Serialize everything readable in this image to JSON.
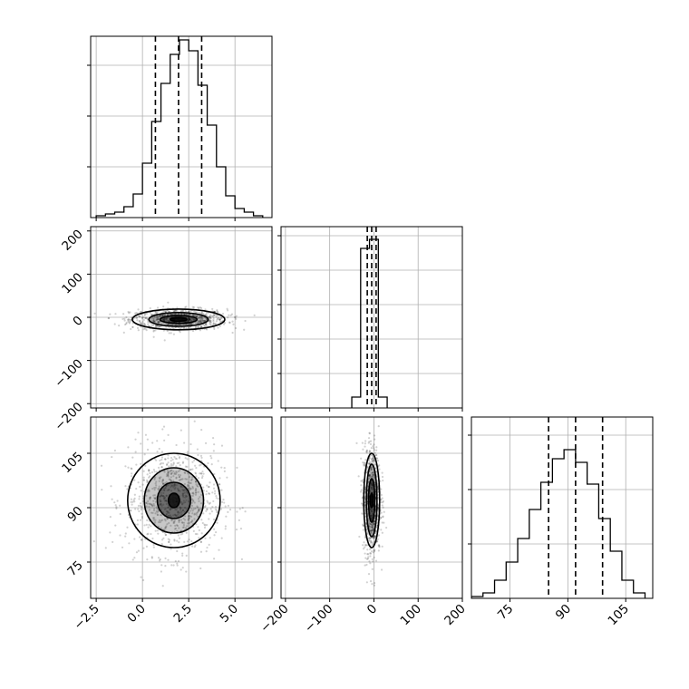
{
  "colors": {
    "line": "#000000",
    "grid": "#b0b0b0",
    "frame": "#000000",
    "scatter": "#000000"
  },
  "chart_data": [
    {
      "type": "histogram",
      "panel": "hist-1",
      "grid": true,
      "xlim": [
        -2.8,
        7.0
      ],
      "ylim": [
        0,
        1.0
      ],
      "bin_edges": [
        -2.5,
        -2.0,
        -1.5,
        -1.0,
        -0.5,
        0.0,
        0.5,
        1.0,
        1.5,
        2.0,
        2.5,
        3.0,
        3.5,
        4.0,
        4.5,
        5.0,
        5.5,
        6.0,
        6.5
      ],
      "values": [
        0.01,
        0.02,
        0.03,
        0.06,
        0.13,
        0.3,
        0.53,
        0.74,
        0.9,
        0.98,
        0.92,
        0.73,
        0.51,
        0.28,
        0.12,
        0.05,
        0.03,
        0.01
      ],
      "quantiles": [
        0.7,
        1.95,
        3.2
      ]
    },
    {
      "type": "histogram",
      "panel": "hist-2",
      "grid": true,
      "xlim": [
        -210,
        200
      ],
      "ylim": [
        0,
        1.0
      ],
      "bin_edges": [
        -50,
        -30,
        -10,
        10,
        30
      ],
      "values": [
        0.06,
        0.88,
        0.93,
        0.06
      ],
      "quantiles": [
        -15,
        -5,
        5
      ]
    },
    {
      "type": "histogram",
      "panel": "hist-3",
      "grid": true,
      "xlim": [
        65,
        112
      ],
      "ylim": [
        0,
        1.0
      ],
      "bin_edges": [
        65,
        68,
        71,
        74,
        77,
        80,
        83,
        86,
        89,
        92,
        95,
        98,
        101,
        104,
        107,
        110
      ],
      "values": [
        0.01,
        0.03,
        0.1,
        0.2,
        0.33,
        0.49,
        0.64,
        0.77,
        0.82,
        0.75,
        0.63,
        0.44,
        0.26,
        0.1,
        0.03
      ],
      "quantiles": [
        85,
        92,
        99
      ]
    },
    {
      "type": "scatter",
      "panel": "scatter-1",
      "grid": true,
      "xlim": [
        -2.8,
        7.0
      ],
      "ylim": [
        -210,
        210
      ],
      "ylabel_ticks": [
        "200",
        "100",
        "0",
        "−100",
        "−200"
      ],
      "center": [
        1.95,
        -5
      ],
      "spread": [
        1.3,
        12
      ],
      "contour_half_widths": [
        [
          0.45,
          4
        ],
        [
          1.0,
          9
        ],
        [
          1.6,
          16
        ],
        [
          2.5,
          24
        ]
      ]
    },
    {
      "type": "scatter",
      "panel": "scatter-2",
      "grid": true,
      "xlim": [
        -2.8,
        7.0
      ],
      "ylim": [
        65,
        115
      ],
      "ylabel_ticks": [
        "105",
        "90",
        "75"
      ],
      "xlabel_ticks": [
        "−2.5",
        "0.0",
        "2.5",
        "5.0"
      ],
      "center": [
        1.7,
        92
      ],
      "spread": [
        1.3,
        7.5
      ],
      "contour_half_widths": [
        [
          0.3,
          2
        ],
        [
          0.9,
          5
        ],
        [
          1.6,
          9
        ],
        [
          2.5,
          13
        ]
      ]
    },
    {
      "type": "scatter",
      "panel": "scatter-3",
      "grid": true,
      "xlim": [
        -210,
        200
      ],
      "ylim": [
        65,
        115
      ],
      "xlabel_ticks": [
        "−200",
        "−100",
        "0",
        "100",
        "200"
      ],
      "center": [
        -5,
        92
      ],
      "spread": [
        10,
        7.5
      ],
      "contour_half_widths": [
        [
          3,
          2
        ],
        [
          7,
          6
        ],
        [
          12,
          10
        ],
        [
          18,
          13
        ]
      ]
    },
    {
      "type": "axis",
      "panel": "hist-3-xaxis",
      "xlabel_ticks": [
        "75",
        "90",
        "105"
      ]
    }
  ]
}
